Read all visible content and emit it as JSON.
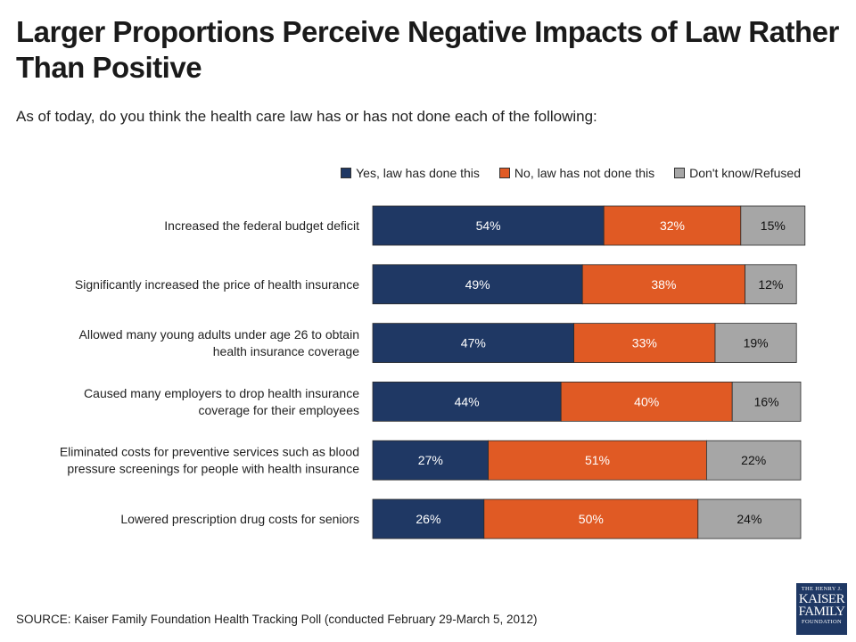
{
  "title": "Larger Proportions Perceive Negative Impacts of Law Rather Than Positive",
  "subtitle": "As of today, do you think the health care law has or has not done each of the following:",
  "source": "SOURCE: Kaiser Family Foundation Health Tracking Poll (conducted February 29-March 5, 2012)",
  "logo": {
    "line1": "THE HENRY J.",
    "line2": "KAISER",
    "line3": "FAMILY",
    "line4": "FOUNDATION"
  },
  "colors": {
    "yes": "#1f3864",
    "no": "#e05a24",
    "dk": "#a6a6a6"
  },
  "chart_data": {
    "type": "bar",
    "orientation": "horizontal",
    "stacked": true,
    "legend_position": "top-right",
    "categories": [
      [
        "Increased the federal budget deficit"
      ],
      [
        "Significantly increased the price of health insurance"
      ],
      [
        "Allowed many young adults under age 26 to obtain",
        "health insurance coverage"
      ],
      [
        "Caused many employers to drop health insurance",
        "coverage for their employees"
      ],
      [
        "Eliminated  costs for preventive services such as blood",
        "pressure screenings for people with health insurance"
      ],
      [
        "Lowered prescription drug costs for seniors"
      ]
    ],
    "series": [
      {
        "name": "Yes, law has done this",
        "color": "#1f3864",
        "values": [
          54,
          49,
          47,
          44,
          27,
          26
        ]
      },
      {
        "name": "No, law has not done this",
        "color": "#e05a24",
        "values": [
          32,
          38,
          33,
          40,
          51,
          50
        ]
      },
      {
        "name": "Don't know/Refused",
        "color": "#a6a6a6",
        "values": [
          15,
          12,
          19,
          16,
          22,
          24
        ]
      }
    ],
    "value_suffix": "%",
    "xlim": [
      0,
      100
    ],
    "grid": false
  }
}
